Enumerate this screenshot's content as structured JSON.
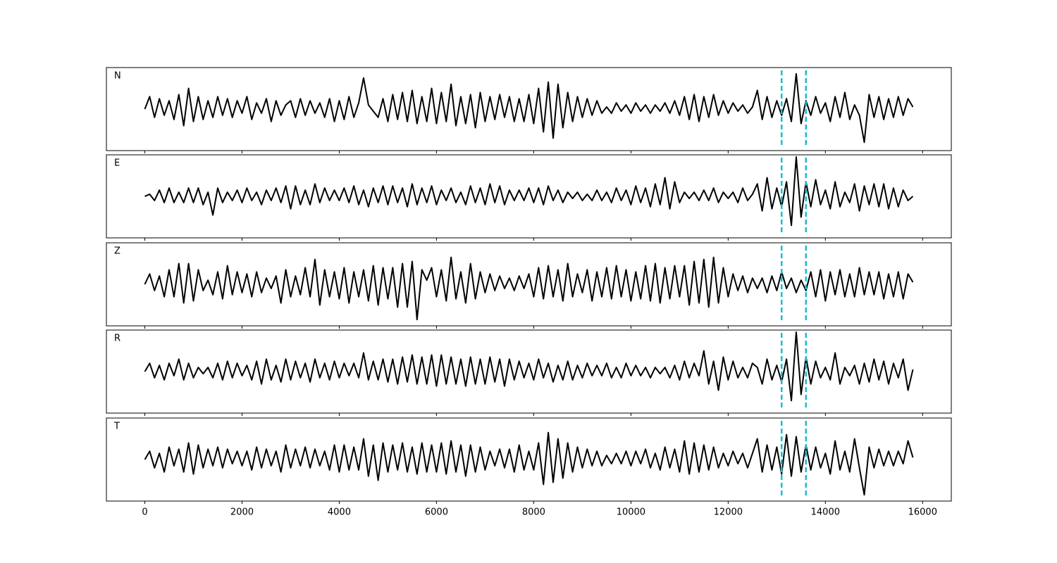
{
  "chart_data": {
    "type": "line",
    "subplots": true,
    "x": [
      0,
      100,
      200,
      300,
      400,
      500,
      600,
      700,
      800,
      900,
      1000,
      1100,
      1200,
      1300,
      1400,
      1500,
      1600,
      1700,
      1800,
      1900,
      2000,
      2100,
      2200,
      2300,
      2400,
      2500,
      2600,
      2700,
      2800,
      2900,
      3000,
      3100,
      3200,
      3300,
      3400,
      3500,
      3600,
      3700,
      3800,
      3900,
      4000,
      4100,
      4200,
      4300,
      4400,
      4500,
      4600,
      4700,
      4800,
      4900,
      5000,
      5100,
      5200,
      5300,
      5400,
      5500,
      5600,
      5700,
      5800,
      5900,
      6000,
      6100,
      6200,
      6300,
      6400,
      6500,
      6600,
      6700,
      6800,
      6900,
      7000,
      7100,
      7200,
      7300,
      7400,
      7500,
      7600,
      7700,
      7800,
      7900,
      8000,
      8100,
      8200,
      8300,
      8400,
      8500,
      8600,
      8700,
      8800,
      8900,
      9000,
      9100,
      9200,
      9300,
      9400,
      9500,
      9600,
      9700,
      9800,
      9900,
      10000,
      10100,
      10200,
      10300,
      10400,
      10500,
      10600,
      10700,
      10800,
      10900,
      11000,
      11100,
      11200,
      11300,
      11400,
      11500,
      11600,
      11700,
      11800,
      11900,
      12000,
      12100,
      12200,
      12300,
      12400,
      12500,
      12600,
      12700,
      12800,
      12900,
      13000,
      13100,
      13200,
      13300,
      13400,
      13500,
      13600,
      13700,
      13800,
      13900,
      14000,
      14100,
      14200,
      14300,
      14400,
      14500,
      14600,
      14700,
      14800,
      14900,
      15000,
      15100,
      15200,
      15300,
      15400,
      15500,
      15600,
      15700,
      15800
    ],
    "xlim": [
      -790,
      16590
    ],
    "xticks": [
      0,
      2000,
      4000,
      6000,
      8000,
      10000,
      12000,
      14000,
      16000
    ],
    "ylim": [
      -1,
      1
    ],
    "vlines": [
      13100,
      13600
    ],
    "vline_color": "#17becf",
    "series": [
      {
        "name": "N",
        "color": "#000000",
        "values": [
          0,
          0.3,
          -0.2,
          0.25,
          -0.15,
          0.2,
          -0.25,
          0.35,
          -0.4,
          0.5,
          -0.3,
          0.3,
          -0.25,
          0.2,
          -0.2,
          0.3,
          -0.15,
          0.25,
          -0.2,
          0.2,
          -0.1,
          0.3,
          -0.25,
          0.15,
          -0.1,
          0.25,
          -0.3,
          0.2,
          -0.15,
          0.1,
          0.2,
          -0.2,
          0.25,
          -0.15,
          0.2,
          -0.1,
          0.15,
          -0.2,
          0.25,
          -0.3,
          0.2,
          -0.25,
          0.3,
          -0.2,
          0.15,
          0.75,
          0.1,
          -0.05,
          -0.2,
          0.25,
          -0.3,
          0.35,
          -0.25,
          0.4,
          -0.3,
          0.45,
          -0.35,
          0.3,
          -0.3,
          0.5,
          -0.35,
          0.4,
          -0.3,
          0.6,
          -0.4,
          0.3,
          -0.35,
          0.35,
          -0.45,
          0.4,
          -0.3,
          0.3,
          -0.25,
          0.35,
          -0.2,
          0.3,
          -0.3,
          0.25,
          -0.3,
          0.35,
          -0.35,
          0.5,
          -0.55,
          0.65,
          -0.7,
          0.6,
          -0.45,
          0.4,
          -0.3,
          0.3,
          -0.2,
          0.25,
          -0.15,
          0.2,
          -0.1,
          0.05,
          -0.1,
          0.15,
          -0.05,
          0.1,
          -0.1,
          0.15,
          -0.05,
          0.1,
          -0.1,
          0.1,
          -0.05,
          0.15,
          -0.1,
          0.2,
          -0.15,
          0.3,
          -0.25,
          0.35,
          -0.3,
          0.3,
          -0.2,
          0.35,
          -0.15,
          0.2,
          -0.1,
          0.15,
          -0.05,
          0.1,
          -0.1,
          0.05,
          0.45,
          -0.25,
          0.3,
          -0.2,
          0.2,
          -0.15,
          0.25,
          -0.3,
          0.85,
          -0.35,
          0.2,
          -0.15,
          0.3,
          -0.1,
          0.15,
          -0.3,
          0.3,
          -0.2,
          0.4,
          -0.25,
          0.1,
          -0.15,
          -0.8,
          0.35,
          -0.2,
          0.3,
          -0.25,
          0.25,
          -0.2,
          0.3,
          -0.15,
          0.25,
          0.05
        ]
      },
      {
        "name": "E",
        "color": "#000000",
        "values": [
          0,
          0.05,
          -0.1,
          0.15,
          -0.15,
          0.2,
          -0.15,
          0.1,
          -0.15,
          0.2,
          -0.15,
          0.2,
          -0.2,
          0.1,
          -0.45,
          0.2,
          -0.15,
          0.1,
          -0.1,
          0.15,
          -0.15,
          0.2,
          -0.1,
          0.1,
          -0.2,
          0.15,
          -0.1,
          0.2,
          -0.15,
          0.25,
          -0.3,
          0.25,
          -0.2,
          0.15,
          -0.2,
          0.3,
          -0.15,
          0.2,
          -0.1,
          0.15,
          -0.1,
          0.2,
          -0.15,
          0.25,
          -0.2,
          0.15,
          -0.25,
          0.2,
          -0.15,
          0.25,
          -0.2,
          0.25,
          -0.15,
          0.2,
          -0.25,
          0.3,
          -0.2,
          0.2,
          -0.15,
          0.25,
          -0.2,
          0.15,
          -0.1,
          0.2,
          -0.15,
          0.1,
          -0.2,
          0.25,
          -0.15,
          0.2,
          -0.2,
          0.3,
          -0.15,
          0.25,
          -0.2,
          0.15,
          -0.1,
          0.15,
          -0.1,
          0.2,
          -0.15,
          0.2,
          -0.2,
          0.25,
          -0.1,
          0.15,
          -0.15,
          0.1,
          -0.05,
          0.1,
          -0.1,
          0.05,
          -0.1,
          0.15,
          -0.1,
          0.1,
          -0.15,
          0.2,
          -0.1,
          0.15,
          -0.2,
          0.25,
          -0.15,
          0.2,
          -0.25,
          0.3,
          -0.2,
          0.45,
          -0.3,
          0.35,
          -0.15,
          0.1,
          -0.05,
          0.1,
          -0.1,
          0.15,
          -0.1,
          0.2,
          -0.15,
          0.1,
          -0.05,
          0.1,
          -0.15,
          0.2,
          -0.1,
          0.05,
          0.3,
          -0.35,
          0.45,
          -0.3,
          0.2,
          -0.25,
          0.35,
          -0.7,
          0.95,
          -0.5,
          0.35,
          -0.25,
          0.4,
          -0.2,
          0.15,
          -0.3,
          0.35,
          -0.25,
          0.1,
          -0.15,
          0.3,
          -0.35,
          0.25,
          -0.2,
          0.3,
          -0.25,
          0.3,
          -0.3,
          0.2,
          -0.25,
          0.15,
          -0.1,
          0.0
        ]
      },
      {
        "name": "Z",
        "color": "#000000",
        "values": [
          0,
          0.25,
          -0.15,
          0.2,
          -0.3,
          0.35,
          -0.3,
          0.5,
          -0.45,
          0.5,
          -0.4,
          0.35,
          -0.15,
          0.1,
          -0.25,
          0.3,
          -0.35,
          0.45,
          -0.25,
          0.3,
          -0.2,
          0.25,
          -0.3,
          0.3,
          -0.2,
          0.15,
          -0.1,
          0.2,
          -0.45,
          0.35,
          -0.3,
          0.2,
          -0.25,
          0.4,
          -0.3,
          0.6,
          -0.5,
          0.35,
          -0.3,
          0.3,
          -0.35,
          0.4,
          -0.45,
          0.3,
          -0.3,
          0.35,
          -0.4,
          0.45,
          -0.5,
          0.4,
          -0.35,
          0.4,
          -0.55,
          0.5,
          -0.55,
          0.55,
          -0.85,
          0.35,
          0.1,
          0.4,
          -0.3,
          0.35,
          -0.4,
          0.65,
          -0.35,
          0.3,
          -0.45,
          0.5,
          -0.35,
          0.3,
          -0.2,
          0.25,
          -0.15,
          0.2,
          -0.1,
          0.15,
          -0.15,
          0.2,
          -0.1,
          0.25,
          -0.3,
          0.4,
          -0.35,
          0.45,
          -0.3,
          0.35,
          -0.4,
          0.5,
          -0.3,
          0.25,
          -0.2,
          0.35,
          -0.4,
          0.3,
          -0.3,
          0.4,
          -0.35,
          0.45,
          -0.3,
          0.35,
          -0.4,
          0.3,
          -0.35,
          0.45,
          -0.4,
          0.5,
          -0.45,
          0.4,
          -0.35,
          0.45,
          -0.3,
          0.45,
          -0.5,
          0.55,
          -0.45,
          0.6,
          -0.55,
          0.65,
          -0.45,
          0.4,
          -0.3,
          0.25,
          -0.15,
          0.2,
          -0.2,
          0.15,
          -0.1,
          0.15,
          -0.2,
          0.2,
          -0.15,
          0.3,
          -0.1,
          0.15,
          -0.2,
          0.1,
          -0.15,
          0.3,
          -0.3,
          0.35,
          -0.4,
          0.3,
          -0.25,
          0.35,
          -0.3,
          0.25,
          -0.3,
          0.4,
          -0.25,
          0.3,
          -0.25,
          0.3,
          -0.35,
          0.25,
          -0.3,
          0.3,
          -0.35,
          0.25,
          0.05
        ]
      },
      {
        "name": "R",
        "color": "#000000",
        "values": [
          0,
          0.2,
          -0.15,
          0.15,
          -0.2,
          0.2,
          -0.1,
          0.3,
          -0.2,
          0.2,
          -0.15,
          0.1,
          -0.05,
          0.1,
          -0.15,
          0.2,
          -0.2,
          0.25,
          -0.15,
          0.2,
          -0.1,
          0.15,
          -0.2,
          0.25,
          -0.3,
          0.3,
          -0.2,
          0.15,
          -0.25,
          0.3,
          -0.2,
          0.25,
          -0.15,
          0.2,
          -0.25,
          0.3,
          -0.15,
          0.2,
          -0.2,
          0.25,
          -0.15,
          0.2,
          -0.1,
          0.2,
          -0.15,
          0.45,
          -0.2,
          0.25,
          -0.2,
          0.3,
          -0.25,
          0.3,
          -0.3,
          0.35,
          -0.25,
          0.4,
          -0.3,
          0.35,
          -0.3,
          0.4,
          -0.35,
          0.4,
          -0.3,
          0.35,
          -0.3,
          0.3,
          -0.35,
          0.35,
          -0.3,
          0.3,
          -0.3,
          0.35,
          -0.25,
          0.3,
          -0.35,
          0.3,
          -0.2,
          0.25,
          -0.15,
          0.2,
          -0.2,
          0.3,
          -0.15,
          0.2,
          -0.25,
          0.15,
          -0.2,
          0.25,
          -0.2,
          0.15,
          -0.15,
          0.2,
          -0.1,
          0.15,
          -0.1,
          0.2,
          -0.15,
          0.1,
          -0.15,
          0.2,
          -0.1,
          0.15,
          -0.1,
          0.1,
          -0.15,
          0.1,
          -0.05,
          0.1,
          -0.15,
          0.15,
          -0.2,
          0.25,
          -0.15,
          0.2,
          -0.1,
          0.5,
          -0.3,
          0.25,
          -0.45,
          0.35,
          -0.2,
          0.25,
          -0.15,
          0.1,
          -0.15,
          0.2,
          0.1,
          -0.3,
          0.3,
          -0.2,
          0.15,
          -0.25,
          0.3,
          -0.7,
          0.95,
          -0.55,
          0.35,
          -0.3,
          0.25,
          -0.15,
          0.1,
          -0.2,
          0.45,
          -0.3,
          0.1,
          -0.1,
          0.15,
          -0.3,
          0.2,
          -0.25,
          0.3,
          -0.2,
          0.25,
          -0.3,
          0.2,
          -0.15,
          0.3,
          -0.45,
          0.05
        ]
      },
      {
        "name": "T",
        "color": "#000000",
        "values": [
          0,
          0.2,
          -0.2,
          0.15,
          -0.3,
          0.3,
          -0.15,
          0.25,
          -0.3,
          0.4,
          -0.35,
          0.35,
          -0.2,
          0.25,
          -0.15,
          0.3,
          -0.2,
          0.25,
          -0.1,
          0.2,
          -0.15,
          0.2,
          -0.25,
          0.3,
          -0.2,
          0.25,
          -0.15,
          0.2,
          -0.3,
          0.35,
          -0.2,
          0.25,
          -0.15,
          0.3,
          -0.2,
          0.25,
          -0.15,
          0.2,
          -0.25,
          0.35,
          -0.3,
          0.35,
          -0.25,
          0.3,
          -0.25,
          0.5,
          -0.4,
          0.35,
          -0.5,
          0.4,
          -0.3,
          0.35,
          -0.25,
          0.4,
          -0.3,
          0.3,
          -0.35,
          0.4,
          -0.3,
          0.35,
          -0.3,
          0.4,
          -0.35,
          0.45,
          -0.3,
          0.35,
          -0.4,
          0.35,
          -0.3,
          0.3,
          -0.25,
          0.2,
          -0.15,
          0.25,
          -0.2,
          0.25,
          -0.3,
          0.35,
          -0.25,
          0.2,
          -0.25,
          0.4,
          -0.6,
          0.65,
          -0.55,
          0.5,
          -0.45,
          0.4,
          -0.3,
          0.3,
          -0.2,
          0.25,
          -0.15,
          0.2,
          -0.15,
          0.1,
          -0.1,
          0.15,
          -0.1,
          0.2,
          -0.15,
          0.2,
          -0.1,
          0.25,
          -0.2,
          0.15,
          -0.25,
          0.3,
          -0.2,
          0.25,
          -0.3,
          0.45,
          -0.35,
          0.4,
          -0.3,
          0.35,
          -0.25,
          0.3,
          -0.2,
          0.15,
          -0.15,
          0.2,
          -0.1,
          0.15,
          -0.2,
          0.15,
          0.5,
          -0.3,
          0.35,
          -0.25,
          0.3,
          -0.35,
          0.6,
          -0.4,
          0.55,
          -0.3,
          0.35,
          -0.25,
          0.3,
          -0.2,
          0.15,
          -0.35,
          0.45,
          -0.25,
          0.2,
          -0.3,
          0.5,
          -0.2,
          -0.85,
          0.3,
          -0.2,
          0.25,
          -0.15,
          0.2,
          -0.15,
          0.2,
          -0.1,
          0.45,
          0.05
        ]
      }
    ]
  }
}
